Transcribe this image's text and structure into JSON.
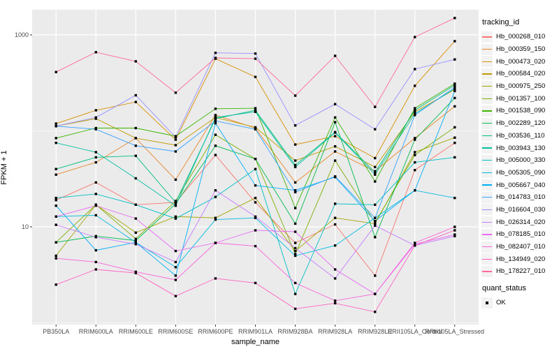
{
  "figure": {
    "y_axis": {
      "label": "FPKM + 1",
      "tick_labels": [
        "1000",
        "10"
      ],
      "tick_values": [
        1000,
        10
      ],
      "minor_values": [
        100,
        1
      ]
    },
    "x_axis": {
      "label": "sample_name"
    },
    "legend": {
      "tracking_title": "tracking_id",
      "quant_title": "quant_status",
      "quant_item_label": "OK"
    },
    "colors": {
      "panel_bg": "#EBEBEB",
      "grid": "#FFFFFF",
      "point": "#000000",
      "axis_text": "#4D4D4D",
      "tick_mark": "#333333",
      "legend_key_bg": "#F2F2F2"
    }
  },
  "chart_data": {
    "type": "line",
    "title": "",
    "xlabel": "sample_name",
    "ylabel": "FPKM + 1",
    "y_scale": "log10",
    "y_ticks": [
      10,
      1000
    ],
    "y_minor": [
      1,
      100
    ],
    "ylim": [
      1.1,
      1700
    ],
    "grid": true,
    "legend_position": "right",
    "point_shape": "filled-black-square",
    "quant_status_all": "OK",
    "x": [
      "PB350LA",
      "RRIM600LA",
      "RRIM600LE",
      "RRIM600SE",
      "RRIM600PE",
      "RRIM901LA",
      "RRIM928BA",
      "RRIM928LA",
      "RRIM928LE",
      "RRII105LA_Control",
      "RRII105LA_Stressed"
    ],
    "series": [
      {
        "name": "Hb_000268_010",
        "color": "#F8766D",
        "values": [
          19,
          29,
          17,
          18,
          56,
          18,
          6.8,
          10.6,
          3.1,
          39,
          75
        ]
      },
      {
        "name": "Hb_000359_150",
        "color": "#E88526",
        "values": [
          35,
          47,
          84,
          31,
          146,
          107,
          29,
          61,
          38,
          84,
          180
        ]
      },
      {
        "name": "Hb_000473_020",
        "color": "#D89000",
        "values": [
          119,
          164,
          200,
          81,
          565,
          365,
          72,
          88,
          52,
          295,
          860
        ]
      },
      {
        "name": "Hb_000584_020",
        "color": "#C09B00",
        "values": [
          112,
          134,
          84,
          71,
          138,
          109,
          49,
          69,
          42,
          158,
          270
        ]
      },
      {
        "name": "Hb_000975_250",
        "color": "#A3A500",
        "values": [
          5.0,
          17,
          8.7,
          12.8,
          12.4,
          20,
          5.6,
          12.4,
          10.8,
          60,
          85
        ]
      },
      {
        "name": "Hb_001357_100",
        "color": "#7CAE00",
        "values": [
          6.9,
          17,
          7.5,
          18.6,
          91,
          51,
          5.2,
          49,
          11.1,
          56,
          109
        ]
      },
      {
        "name": "Hb_001538_090",
        "color": "#39B600",
        "values": [
          84,
          107,
          107,
          88,
          170,
          172,
          15.7,
          138,
          29.7,
          172,
          310
        ]
      },
      {
        "name": "Hb_002289_120",
        "color": "#00BB4E",
        "values": [
          6.9,
          8.0,
          7.2,
          17.4,
          70,
          51,
          10.8,
          123,
          7.8,
          81,
          220
        ]
      },
      {
        "name": "Hb_003536_110",
        "color": "#00BF7D",
        "values": [
          40,
          53,
          55,
          18,
          134,
          164,
          44,
          97,
          37,
          164,
          300
        ]
      },
      {
        "name": "Hb_003943_130",
        "color": "#00C1A3",
        "values": [
          75,
          60,
          32,
          16.6,
          138,
          158,
          42,
          96,
          35,
          151,
          275
        ]
      },
      {
        "name": "Hb_005000_330",
        "color": "#00BFC4",
        "values": [
          20,
          22,
          17,
          12.2,
          20.5,
          40,
          2.0,
          17.4,
          17,
          47,
          53
        ]
      },
      {
        "name": "Hb_005305_090",
        "color": "#00BAE0",
        "values": [
          12.8,
          13.2,
          6.9,
          3.8,
          11.9,
          12.4,
          5.0,
          6.4,
          12.4,
          24,
          20
        ]
      },
      {
        "name": "Hb_005667_040",
        "color": "#00B0F6",
        "values": [
          16.6,
          5.7,
          6.9,
          3.1,
          120,
          27,
          24,
          33,
          11.5,
          24,
          260
        ]
      },
      {
        "name": "Hb_014783_010",
        "color": "#35A2FF",
        "values": [
          112,
          104,
          70,
          61,
          127,
          104,
          23,
          33.5,
          12.4,
          146,
          285
        ]
      },
      {
        "name": "Hb_016604_030",
        "color": "#9590FF",
        "values": [
          112,
          138,
          235,
          86,
          650,
          640,
          114,
          190,
          104,
          440,
          555
        ]
      },
      {
        "name": "Hb_026314_020",
        "color": "#C77CFF",
        "values": [
          10.5,
          7.8,
          6.6,
          4.3,
          24,
          12.8,
          6.0,
          2.9,
          10.3,
          6.4,
          8.0
        ]
      },
      {
        "name": "Hb_078185_010",
        "color": "#E76BF3",
        "values": [
          12.8,
          16.6,
          12.2,
          5.6,
          6.8,
          9.2,
          8.9,
          3.6,
          2.0,
          6.6,
          8.3
        ]
      },
      {
        "name": "Hb_082407_010",
        "color": "#FA62DB",
        "values": [
          4.7,
          4.3,
          3.4,
          2.8,
          6.8,
          6.3,
          2.6,
          1.7,
          2.0,
          6.8,
          10
        ]
      },
      {
        "name": "Hb_134949_020",
        "color": "#FF61C3",
        "values": [
          2.5,
          3.6,
          3.3,
          1.9,
          2.9,
          2.6,
          1.4,
          1.6,
          1.3,
          6.4,
          9.2
        ]
      },
      {
        "name": "Hb_178227_010",
        "color": "#FF6A98",
        "values": [
          410,
          660,
          530,
          250,
          575,
          565,
          233,
          605,
          178,
          950,
          1500
        ]
      }
    ]
  }
}
